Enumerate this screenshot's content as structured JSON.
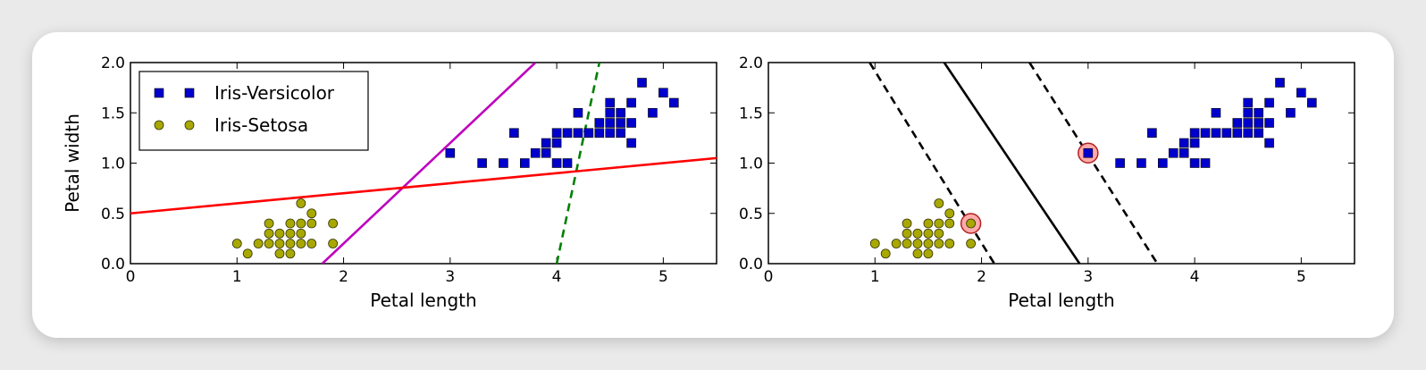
{
  "colors": {
    "versicolor": "#0000cc",
    "setosa": "#a8a800",
    "magenta": "#bf00bf",
    "red": "#ff0000",
    "green": "#008000",
    "support_vector_fill": "#ffaaaa",
    "support_vector_edge": "#b22222"
  },
  "chart_data": [
    {
      "type": "scatter",
      "xlabel": "Petal length",
      "ylabel": "Petal width",
      "xlim": [
        0,
        5.5
      ],
      "ylim": [
        0,
        2.0
      ],
      "xticks": [
        "0",
        "1",
        "2",
        "3",
        "4",
        "5"
      ],
      "yticks": [
        "0.0",
        "0.5",
        "1.0",
        "1.5",
        "2.0"
      ],
      "legend": {
        "placement": "upper-left",
        "entries": [
          {
            "label": "Iris-Versicolor",
            "marker": "square",
            "color": "#0000cc"
          },
          {
            "label": "Iris-Setosa",
            "marker": "circle",
            "color": "#a8a800"
          }
        ]
      },
      "series": [
        {
          "name": "Iris-Versicolor",
          "marker": "square",
          "color": "#0000cc",
          "x": [
            3.0,
            3.3,
            3.5,
            3.6,
            3.7,
            3.8,
            3.9,
            3.9,
            4.0,
            4.0,
            4.0,
            4.1,
            4.1,
            4.2,
            4.2,
            4.3,
            4.4,
            4.4,
            4.5,
            4.5,
            4.5,
            4.6,
            4.6,
            4.7,
            4.7,
            4.7,
            4.8,
            4.9,
            5.0,
            5.1,
            4.6,
            4.5
          ],
          "y": [
            1.1,
            1.0,
            1.0,
            1.3,
            1.0,
            1.1,
            1.1,
            1.2,
            1.0,
            1.2,
            1.3,
            1.3,
            1.0,
            1.3,
            1.5,
            1.3,
            1.3,
            1.4,
            1.3,
            1.5,
            1.6,
            1.3,
            1.5,
            1.2,
            1.4,
            1.6,
            1.8,
            1.5,
            1.7,
            1.6,
            1.4,
            1.4
          ]
        },
        {
          "name": "Iris-Setosa",
          "marker": "circle",
          "color": "#a8a800",
          "x": [
            1.0,
            1.1,
            1.2,
            1.3,
            1.3,
            1.3,
            1.4,
            1.4,
            1.4,
            1.5,
            1.5,
            1.5,
            1.5,
            1.6,
            1.6,
            1.6,
            1.6,
            1.7,
            1.7,
            1.7,
            1.9,
            1.9
          ],
          "y": [
            0.2,
            0.1,
            0.2,
            0.2,
            0.3,
            0.4,
            0.1,
            0.2,
            0.3,
            0.2,
            0.3,
            0.1,
            0.4,
            0.2,
            0.3,
            0.4,
            0.6,
            0.2,
            0.4,
            0.5,
            0.2,
            0.4
          ]
        }
      ],
      "lines": [
        {
          "style": "dashed",
          "color": "#008000",
          "x": [
            4.0,
            4.4
          ],
          "y": [
            0.0,
            2.0
          ]
        },
        {
          "style": "solid",
          "color": "#bf00bf",
          "x": [
            1.8,
            3.8
          ],
          "y": [
            0.0,
            2.0
          ]
        },
        {
          "style": "solid",
          "color": "#ff0000",
          "x": [
            0.0,
            5.5
          ],
          "y": [
            0.5,
            1.05
          ]
        }
      ]
    },
    {
      "type": "scatter",
      "xlabel": "Petal length",
      "ylabel": "",
      "xlim": [
        0,
        5.5
      ],
      "ylim": [
        0,
        2.0
      ],
      "xticks": [
        "0",
        "1",
        "2",
        "3",
        "4",
        "5"
      ],
      "yticks": [
        "0.0",
        "0.5",
        "1.0",
        "1.5",
        "2.0"
      ],
      "series": [
        {
          "name": "Iris-Versicolor",
          "marker": "square",
          "color": "#0000cc",
          "x": [
            3.0,
            3.3,
            3.5,
            3.6,
            3.7,
            3.8,
            3.9,
            3.9,
            4.0,
            4.0,
            4.0,
            4.1,
            4.1,
            4.2,
            4.2,
            4.3,
            4.4,
            4.4,
            4.5,
            4.5,
            4.5,
            4.6,
            4.6,
            4.7,
            4.7,
            4.7,
            4.8,
            4.9,
            5.0,
            5.1,
            4.6,
            4.5
          ],
          "y": [
            1.1,
            1.0,
            1.0,
            1.3,
            1.0,
            1.1,
            1.1,
            1.2,
            1.0,
            1.2,
            1.3,
            1.3,
            1.0,
            1.3,
            1.5,
            1.3,
            1.3,
            1.4,
            1.3,
            1.5,
            1.6,
            1.3,
            1.5,
            1.2,
            1.4,
            1.6,
            1.8,
            1.5,
            1.7,
            1.6,
            1.4,
            1.4
          ]
        },
        {
          "name": "Iris-Setosa",
          "marker": "circle",
          "color": "#a8a800",
          "x": [
            1.0,
            1.1,
            1.2,
            1.3,
            1.3,
            1.3,
            1.4,
            1.4,
            1.4,
            1.5,
            1.5,
            1.5,
            1.5,
            1.6,
            1.6,
            1.6,
            1.6,
            1.7,
            1.7,
            1.7,
            1.9,
            1.9
          ],
          "y": [
            0.2,
            0.1,
            0.2,
            0.2,
            0.3,
            0.4,
            0.1,
            0.2,
            0.3,
            0.2,
            0.3,
            0.1,
            0.4,
            0.2,
            0.3,
            0.4,
            0.6,
            0.2,
            0.4,
            0.5,
            0.2,
            0.4
          ]
        }
      ],
      "support_vectors": {
        "x": [
          1.9,
          3.0
        ],
        "y": [
          0.4,
          1.1
        ]
      },
      "lines": [
        {
          "style": "dashed",
          "color": "#000000",
          "x": [
            0.95,
            2.12
          ],
          "y": [
            2.0,
            0.0
          ]
        },
        {
          "style": "solid",
          "color": "#000000",
          "x": [
            1.65,
            2.92
          ],
          "y": [
            2.0,
            0.0
          ]
        },
        {
          "style": "dashed",
          "color": "#000000",
          "x": [
            2.45,
            3.65
          ],
          "y": [
            2.0,
            0.0
          ]
        }
      ]
    }
  ]
}
